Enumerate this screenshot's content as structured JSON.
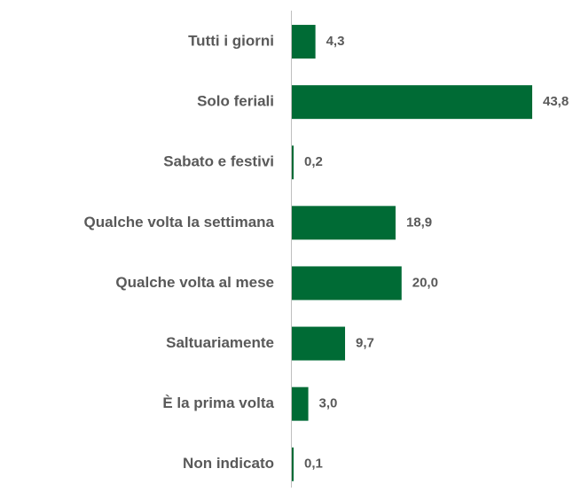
{
  "chart_data": {
    "type": "bar",
    "categories": [
      "Tutti i giorni",
      "Solo feriali",
      "Sabato e festivi",
      "Qualche volta la settimana",
      "Qualche volta al mese",
      "Saltuariamente",
      "È la prima volta",
      "Non indicato"
    ],
    "values": [
      4.3,
      43.8,
      0.2,
      18.9,
      20.0,
      9.7,
      3.0,
      0.1
    ],
    "value_labels": [
      "4,3",
      "43,8",
      "0,2",
      "18,9",
      "20,0",
      "9,7",
      "3,0",
      "0,1"
    ],
    "color": "#006b35"
  }
}
